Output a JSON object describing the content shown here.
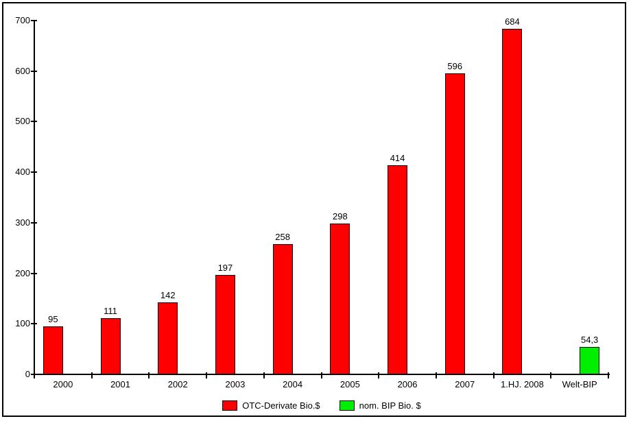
{
  "chart_data": {
    "type": "bar",
    "title": "",
    "xlabel": "",
    "ylabel": "",
    "categories": [
      "2000",
      "2001",
      "2002",
      "2003",
      "2004",
      "2005",
      "2006",
      "2007",
      "1.HJ. 2008",
      "Welt-BIP"
    ],
    "series": [
      {
        "name": "OTC-Derivate Bio.$",
        "color": "#ff0000",
        "values": [
          95,
          111,
          142,
          197,
          258,
          298,
          414,
          596,
          684,
          null
        ],
        "labels": [
          "95",
          "111",
          "142",
          "197",
          "258",
          "298",
          "414",
          "596",
          "684",
          null
        ]
      },
      {
        "name": "nom. BIP Bio. $",
        "color": "#00ee00",
        "values": [
          null,
          null,
          null,
          null,
          null,
          null,
          null,
          null,
          null,
          54.3
        ],
        "labels": [
          null,
          null,
          null,
          null,
          null,
          null,
          null,
          null,
          null,
          "54,3"
        ]
      }
    ],
    "ylim": [
      0,
      700
    ],
    "y_ticks": [
      0,
      100,
      200,
      300,
      400,
      500,
      600,
      700
    ],
    "grid": false,
    "legend_position": "bottom",
    "axis_color": "#000000",
    "text_color": "#000000",
    "background_color": "#ffffff",
    "bar_border_color": "#000000"
  }
}
